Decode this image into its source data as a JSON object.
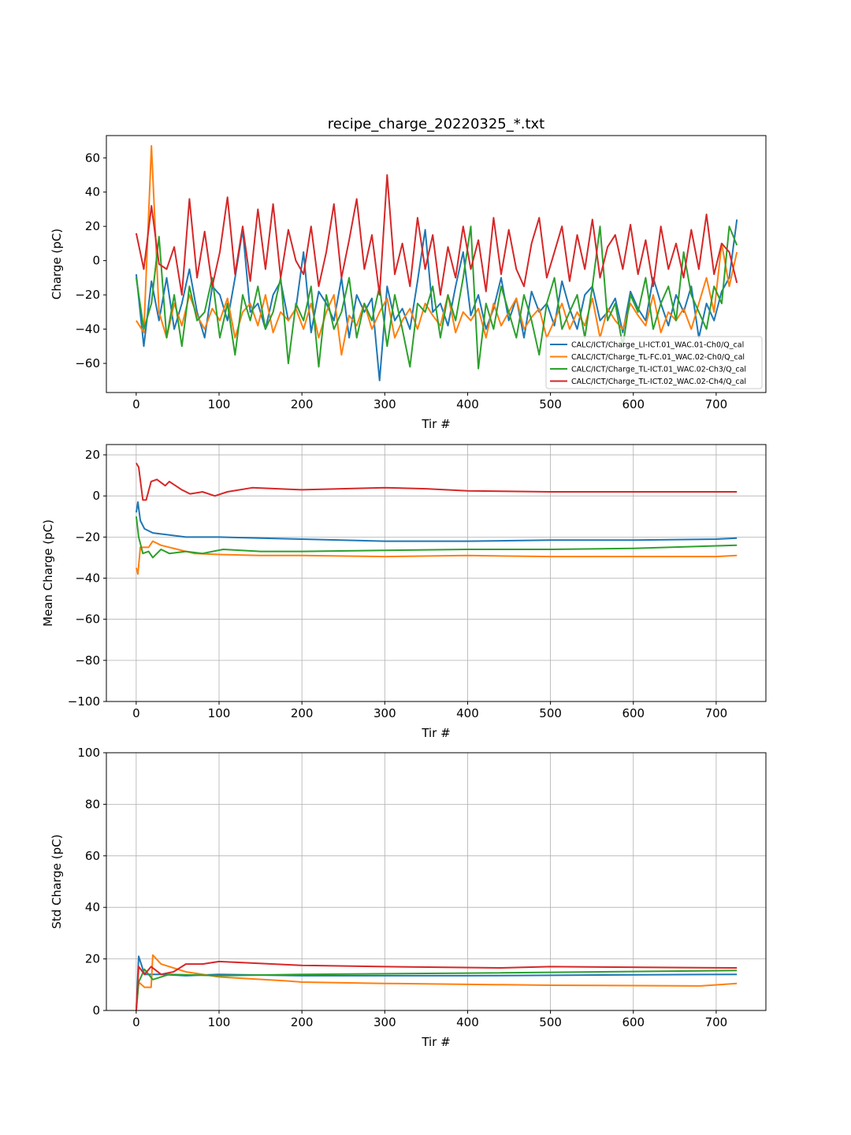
{
  "chart_data": [
    {
      "type": "line",
      "title": "recipe_charge_20220325_*.txt",
      "xlabel": "Tir #",
      "ylabel": "Charge (pC)",
      "xlim": [
        -36,
        760
      ],
      "ylim": [
        -77,
        73
      ],
      "xticks": [
        0,
        100,
        200,
        300,
        400,
        500,
        600,
        700
      ],
      "yticks": [
        -60,
        -40,
        -20,
        0,
        20,
        40,
        60
      ],
      "grid": false,
      "legend": "lower-right",
      "x_range": [
        0,
        725
      ],
      "series": [
        {
          "name": "CALC/ICT/Charge_LI-ICT.01_WAC.01-Ch0/Q_cal",
          "color": "#1f77b4",
          "values": [
            -8,
            -50,
            -12,
            -35,
            -10,
            -40,
            -25,
            -5,
            -30,
            -45,
            -15,
            -20,
            -35,
            -10,
            18,
            -30,
            -25,
            -40,
            -20,
            -12,
            -35,
            -28,
            5,
            -42,
            -18,
            -25,
            -35,
            -10,
            -45,
            -20,
            -30,
            -22,
            -70,
            -15,
            -35,
            -28,
            -40,
            -12,
            18,
            -30,
            -25,
            -38,
            -15,
            5,
            -32,
            -20,
            -40,
            -28,
            -10,
            -35,
            -22,
            -45,
            -18,
            -30,
            -25,
            -38,
            -12,
            -28,
            -40,
            -20,
            -15,
            -35,
            -30,
            -22,
            -42,
            -18,
            -28,
            -35,
            -10,
            -25,
            -38,
            -20,
            -30,
            -15,
            -45,
            -25,
            -35,
            -18,
            -10,
            24
          ]
        },
        {
          "name": "CALC/ICT/Charge_TL-FC.01_WAC.02-Ch0/Q_cal",
          "color": "#ff7f0e",
          "values": [
            -35,
            -42,
            67,
            -30,
            -45,
            -25,
            -38,
            -20,
            -32,
            -40,
            -28,
            -35,
            -22,
            -45,
            -30,
            -25,
            -38,
            -20,
            -42,
            -30,
            -35,
            -28,
            -40,
            -25,
            -45,
            -30,
            -20,
            -55,
            -32,
            -38,
            -25,
            -40,
            -30,
            -22,
            -45,
            -35,
            -28,
            -40,
            -25,
            -32,
            -38,
            -20,
            -42,
            -30,
            -35,
            -28,
            -45,
            -25,
            -38,
            -30,
            -22,
            -40,
            -33,
            -28,
            -45,
            -35,
            -25,
            -40,
            -30,
            -38,
            -22,
            -45,
            -28,
            -35,
            -40,
            -25,
            -32,
            -38,
            -20,
            -42,
            -30,
            -35,
            -28,
            -40,
            -25,
            -10,
            -30,
            10,
            -15,
            5
          ]
        },
        {
          "name": "CALC/ICT/Charge_TL-ICT.01_WAC.02-Ch3/Q_cal",
          "color": "#2ca02c",
          "values": [
            -10,
            -40,
            -25,
            14,
            -45,
            -20,
            -50,
            -15,
            -35,
            -30,
            -10,
            -45,
            -25,
            -55,
            -20,
            -35,
            -15,
            -40,
            -30,
            -10,
            -60,
            -25,
            -35,
            -15,
            -62,
            -20,
            -40,
            -30,
            -10,
            -45,
            -25,
            -35,
            -15,
            -50,
            -20,
            -40,
            -62,
            -25,
            -30,
            -15,
            -45,
            -20,
            -35,
            -10,
            20,
            -63,
            -25,
            -40,
            -15,
            -30,
            -45,
            -20,
            -35,
            -55,
            -25,
            -10,
            -40,
            -30,
            -20,
            -45,
            -15,
            20,
            -35,
            -25,
            -50,
            -20,
            -30,
            -10,
            -40,
            -25,
            -15,
            -35,
            5,
            -20,
            -30,
            -40,
            -15,
            -25,
            20,
            9
          ]
        },
        {
          "name": "CALC/ICT/Charge_TL-ICT.02_WAC.02-Ch4/Q_cal",
          "color": "#d62728",
          "values": [
            16,
            -5,
            32,
            -2,
            -5,
            8,
            -20,
            36,
            -10,
            17,
            -15,
            5,
            37,
            -8,
            20,
            -12,
            30,
            -5,
            33,
            -10,
            18,
            0,
            -8,
            20,
            -15,
            5,
            33,
            -10,
            12,
            36,
            -5,
            15,
            -20,
            50,
            -8,
            10,
            -15,
            25,
            -5,
            15,
            -20,
            8,
            -10,
            20,
            -5,
            12,
            -18,
            25,
            -8,
            18,
            -5,
            -15,
            10,
            25,
            -10,
            5,
            20,
            -12,
            15,
            -5,
            24,
            -10,
            8,
            15,
            -5,
            21,
            -8,
            12,
            -15,
            20,
            -5,
            10,
            -10,
            18,
            -5,
            27,
            -8,
            10,
            5,
            -13
          ]
        }
      ]
    },
    {
      "type": "line",
      "xlabel": "Tir #",
      "ylabel": "Mean Charge (pC)",
      "xlim": [
        -36,
        760
      ],
      "ylim": [
        -100,
        25
      ],
      "xticks": [
        0,
        100,
        200,
        300,
        400,
        500,
        600,
        700
      ],
      "yticks": [
        -100,
        -80,
        -60,
        -40,
        -20,
        0,
        20
      ],
      "grid": true,
      "series": [
        {
          "color": "#1f77b4",
          "points": [
            [
              0,
              -8
            ],
            [
              2,
              -3
            ],
            [
              5,
              -12
            ],
            [
              10,
              -16
            ],
            [
              20,
              -18
            ],
            [
              40,
              -19
            ],
            [
              60,
              -20
            ],
            [
              100,
              -20
            ],
            [
              150,
              -20.5
            ],
            [
              200,
              -21
            ],
            [
              300,
              -22
            ],
            [
              400,
              -22
            ],
            [
              500,
              -21.5
            ],
            [
              600,
              -21.5
            ],
            [
              700,
              -21
            ],
            [
              725,
              -20.5
            ]
          ]
        },
        {
          "color": "#ff7f0e",
          "points": [
            [
              0,
              -35
            ],
            [
              2,
              -38
            ],
            [
              5,
              -25
            ],
            [
              15,
              -25
            ],
            [
              20,
              -22
            ],
            [
              30,
              -24
            ],
            [
              50,
              -26
            ],
            [
              70,
              -28
            ],
            [
              100,
              -28.5
            ],
            [
              150,
              -29
            ],
            [
              200,
              -29
            ],
            [
              300,
              -29.5
            ],
            [
              400,
              -29
            ],
            [
              500,
              -29.5
            ],
            [
              600,
              -29.5
            ],
            [
              700,
              -29.5
            ],
            [
              725,
              -29
            ]
          ]
        },
        {
          "color": "#2ca02c",
          "points": [
            [
              0,
              -10
            ],
            [
              3,
              -20
            ],
            [
              8,
              -28
            ],
            [
              15,
              -27
            ],
            [
              20,
              -30
            ],
            [
              30,
              -26
            ],
            [
              40,
              -28
            ],
            [
              60,
              -27
            ],
            [
              80,
              -28
            ],
            [
              105,
              -26
            ],
            [
              150,
              -27
            ],
            [
              200,
              -27
            ],
            [
              300,
              -26.5
            ],
            [
              400,
              -26
            ],
            [
              500,
              -26
            ],
            [
              600,
              -25.5
            ],
            [
              725,
              -24
            ]
          ]
        },
        {
          "color": "#d62728",
          "points": [
            [
              0,
              16
            ],
            [
              3,
              14
            ],
            [
              8,
              -2
            ],
            [
              12,
              -2
            ],
            [
              18,
              7
            ],
            [
              25,
              8
            ],
            [
              35,
              5
            ],
            [
              40,
              7
            ],
            [
              55,
              3
            ],
            [
              65,
              1
            ],
            [
              80,
              2
            ],
            [
              95,
              0
            ],
            [
              110,
              2
            ],
            [
              140,
              4
            ],
            [
              200,
              3
            ],
            [
              300,
              4
            ],
            [
              350,
              3.5
            ],
            [
              400,
              2.5
            ],
            [
              500,
              2
            ],
            [
              725,
              2
            ]
          ]
        }
      ]
    },
    {
      "type": "line",
      "xlabel": "Tir #",
      "ylabel": "Std Charge (pC)",
      "xlim": [
        -36,
        760
      ],
      "ylim": [
        0,
        100
      ],
      "xticks": [
        0,
        100,
        200,
        300,
        400,
        500,
        600,
        700
      ],
      "yticks": [
        0,
        20,
        40,
        60,
        80,
        100
      ],
      "grid": true,
      "series": [
        {
          "color": "#1f77b4",
          "points": [
            [
              0,
              0
            ],
            [
              3,
              21
            ],
            [
              10,
              14
            ],
            [
              30,
              14
            ],
            [
              60,
              13.5
            ],
            [
              100,
              14
            ],
            [
              200,
              13.5
            ],
            [
              400,
              13.5
            ],
            [
              725,
              14
            ]
          ]
        },
        {
          "color": "#ff7f0e",
          "points": [
            [
              0,
              0
            ],
            [
              3,
              11
            ],
            [
              10,
              9
            ],
            [
              18,
              9
            ],
            [
              20,
              21.5
            ],
            [
              30,
              18
            ],
            [
              60,
              15
            ],
            [
              100,
              13
            ],
            [
              180,
              11.5
            ],
            [
              200,
              11
            ],
            [
              300,
              10.5
            ],
            [
              500,
              9.8
            ],
            [
              680,
              9.5
            ],
            [
              725,
              10.5
            ]
          ]
        },
        {
          "color": "#2ca02c",
          "points": [
            [
              0,
              0
            ],
            [
              3,
              11
            ],
            [
              10,
              16
            ],
            [
              20,
              12
            ],
            [
              40,
              14
            ],
            [
              100,
              13.5
            ],
            [
              200,
              14
            ],
            [
              400,
              14.5
            ],
            [
              725,
              15.5
            ]
          ]
        },
        {
          "color": "#d62728",
          "points": [
            [
              0,
              0
            ],
            [
              3,
              17
            ],
            [
              10,
              14
            ],
            [
              18,
              17
            ],
            [
              30,
              14
            ],
            [
              45,
              15
            ],
            [
              60,
              18
            ],
            [
              80,
              18
            ],
            [
              100,
              19
            ],
            [
              200,
              17.5
            ],
            [
              300,
              17
            ],
            [
              440,
              16.5
            ],
            [
              500,
              17
            ],
            [
              725,
              16.5
            ]
          ]
        }
      ]
    }
  ]
}
